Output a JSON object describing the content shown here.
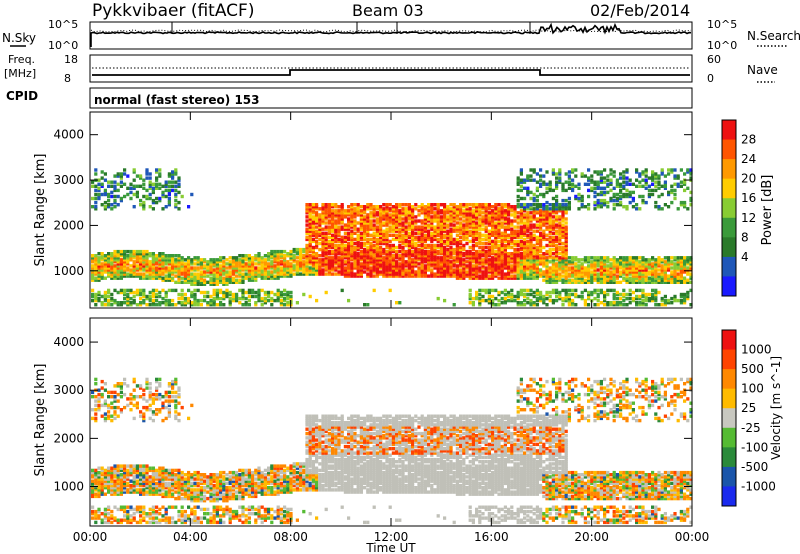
{
  "header": {
    "station": "Pykkvibaer (fitACF)",
    "beam": "Beam 03",
    "date": "02/Feb/2014"
  },
  "noise_panel": {
    "left_label": "N.Sky",
    "right_label": "N.Search",
    "left_ticks": [
      "10^5",
      "10^0"
    ],
    "right_ticks": [
      "10^5",
      "10^0"
    ]
  },
  "freq_panel": {
    "left_label_line1": "Freq.",
    "left_label_line2": "[MHz]",
    "left_ticks": [
      "18",
      "8"
    ],
    "right_label": "Nave",
    "right_ticks": [
      "60",
      "0"
    ]
  },
  "cpid_panel": {
    "label": "CPID",
    "value": "normal (fast stereo) 153"
  },
  "colors": {
    "power_scale": [
      "#1a1aff",
      "#1f57b8",
      "#2a7a2a",
      "#3a9a3a",
      "#88cc33",
      "#ffcc00",
      "#ff9900",
      "#ff5500",
      "#ee1111"
    ],
    "velocity_scale": [
      "#1a2aee",
      "#1a55aa",
      "#2a8a3a",
      "#55bb33",
      "#c8c8c0",
      "#ffbb00",
      "#ff8800",
      "#ff4400",
      "#ee1111"
    ],
    "ground_scatter": "#c0c0b8"
  },
  "chart_data": [
    {
      "type": "heatmap",
      "title": "Power",
      "xlabel": "Time UT",
      "ylabel": "Slant Range [km]",
      "x_ticks": [
        "00:00",
        "04:00",
        "08:00",
        "12:00",
        "16:00",
        "20:00",
        "00:00"
      ],
      "y_ticks": [
        "1000",
        "2000",
        "3000",
        "4000"
      ],
      "xlim_hours": [
        0,
        24
      ],
      "ylim_km": [
        180,
        4500
      ],
      "colorbar_label": "Power [dB]",
      "colorbar_ticks": [
        "28",
        "24",
        "20",
        "16",
        "12",
        "8",
        "4"
      ],
      "colorbar_range": [
        0,
        30
      ]
    },
    {
      "type": "heatmap",
      "title": "Velocity",
      "xlabel": "Time UT",
      "ylabel": "Slant Range [km]",
      "x_ticks": [
        "00:00",
        "04:00",
        "08:00",
        "12:00",
        "16:00",
        "20:00",
        "00:00"
      ],
      "y_ticks": [
        "1000",
        "2000",
        "3000",
        "4000"
      ],
      "xlim_hours": [
        0,
        24
      ],
      "ylim_km": [
        180,
        4500
      ],
      "colorbar_label": "Velocity [m s^-1]",
      "colorbar_ticks": [
        "1000",
        "500",
        "100",
        "25",
        "-25",
        "-100",
        "-500",
        "-1000"
      ]
    }
  ]
}
